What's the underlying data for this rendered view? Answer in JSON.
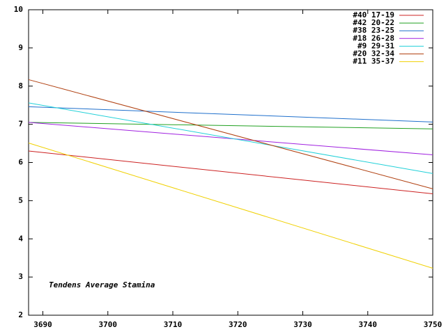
{
  "chart_data": {
    "type": "line",
    "annotation": "Tendens Average Stamina",
    "x": [
      3687.8,
      3750
    ],
    "series": [
      {
        "name": "#40 17-19",
        "color": "#cc2020",
        "values": [
          6.3,
          5.18
        ]
      },
      {
        "name": "#42 20-22",
        "color": "#20a020",
        "values": [
          7.05,
          6.88
        ]
      },
      {
        "name": "#38 23-25",
        "color": "#1e6fcc",
        "values": [
          7.46,
          7.06
        ]
      },
      {
        "name": "#18 26-28",
        "color": "#a020e0",
        "values": [
          7.05,
          6.2
        ]
      },
      {
        "name": "#9 29-31",
        "color": "#20d0d8",
        "values": [
          7.56,
          5.71
        ]
      },
      {
        "name": "#20 32-34",
        "color": "#b04010",
        "values": [
          8.17,
          5.31
        ]
      },
      {
        "name": "#11 35-37",
        "color": "#f0d000",
        "values": [
          6.51,
          3.23
        ]
      }
    ],
    "xlim": [
      3687.8,
      3750
    ],
    "xticks": [
      3690,
      3700,
      3710,
      3720,
      3730,
      3740,
      3750
    ],
    "ylim": [
      2,
      10
    ],
    "yticks": [
      2,
      3,
      4,
      5,
      6,
      7,
      8,
      9,
      10
    ],
    "legend": "top-right"
  }
}
